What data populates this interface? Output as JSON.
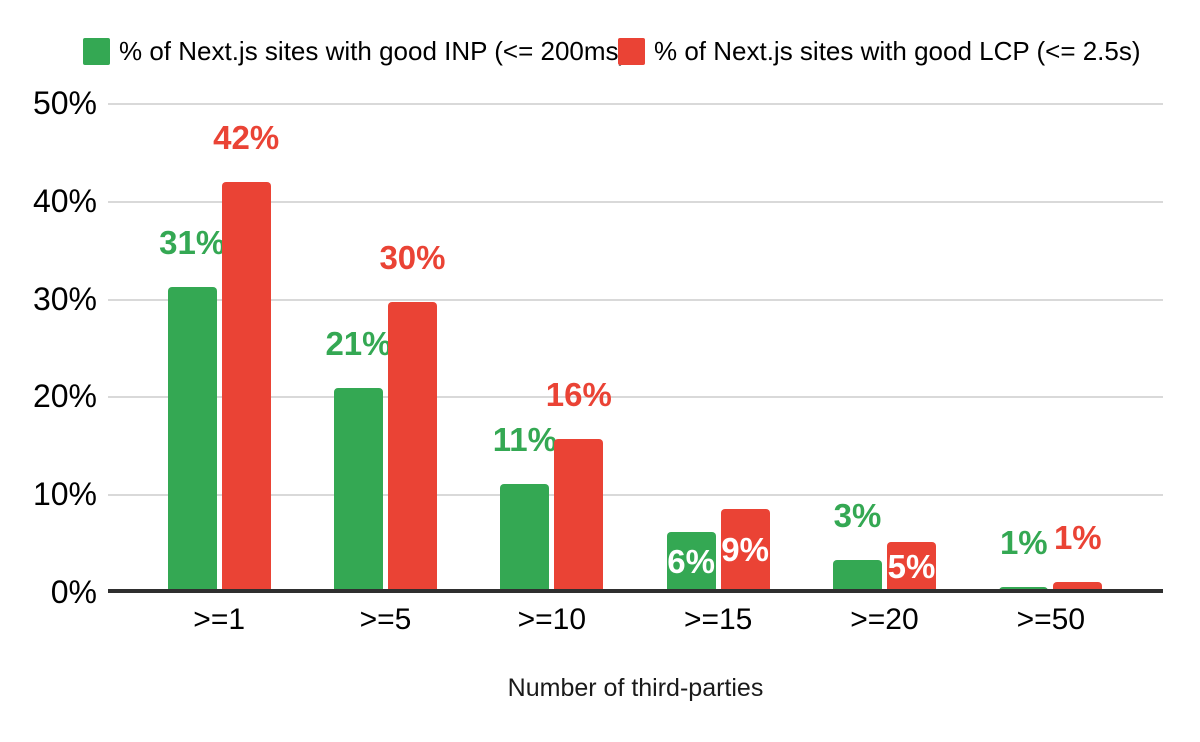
{
  "colors": {
    "inp_green": "#34a853",
    "lcp_red": "#ea4335",
    "gridline": "#d9d9d9",
    "axis_line": "#2f2f2f",
    "text": "#000000",
    "background": "#ffffff"
  },
  "legend": {
    "items": [
      {
        "label": "% of Next.js sites with good INP (<= 200ms)",
        "color": "#34a853"
      },
      {
        "label": "% of Next.js sites with good LCP (<= 2.5s)",
        "color": "#ea4335"
      }
    ]
  },
  "chart_data": {
    "type": "bar",
    "title": "",
    "xlabel": "Number of third-parties",
    "ylabel": "",
    "categories": [
      ">=1",
      ">=5",
      ">=10",
      ">=15",
      ">=20",
      ">=50"
    ],
    "y_ticks": [
      "50%",
      "40%",
      "30%",
      "20%",
      "10%",
      "0%"
    ],
    "ylim": [
      0,
      50
    ],
    "grid": true,
    "legend_position": "top",
    "series": [
      {
        "name": "% of Next.js sites with good INP (<= 200ms)",
        "color": "#34a853",
        "values": [
          31,
          21,
          11,
          6,
          3,
          1
        ],
        "drawn_values": [
          31.2,
          20.9,
          11.0,
          6.1,
          3.3,
          0.5
        ],
        "labels": [
          "31%",
          "21%",
          "11%",
          "6%",
          "3%",
          "1%"
        ],
        "label_placement": [
          "above",
          "above",
          "above",
          "inside",
          "above",
          "above"
        ]
      },
      {
        "name": "% of Next.js sites with good LCP (<= 2.5s)",
        "color": "#ea4335",
        "values": [
          42,
          30,
          16,
          9,
          5,
          1
        ],
        "drawn_values": [
          41.9,
          29.7,
          15.6,
          8.5,
          5.1,
          1.0
        ],
        "labels": [
          "42%",
          "30%",
          "16%",
          "9%",
          "5%",
          "1%"
        ],
        "label_placement": [
          "above",
          "above",
          "above",
          "inside",
          "inside",
          "above"
        ]
      }
    ]
  }
}
